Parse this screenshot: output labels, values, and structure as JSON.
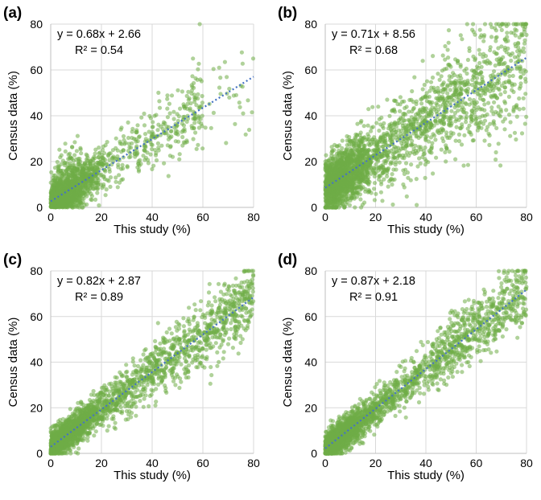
{
  "chart_data": [
    {
      "type": "scatter",
      "panel_label": "(a)",
      "xlabel": "This study (%)",
      "ylabel": "Census data (%)",
      "xlim": [
        0,
        80
      ],
      "ylim": [
        0,
        80
      ],
      "xticks": [
        0,
        20,
        40,
        60,
        80
      ],
      "yticks": [
        0,
        20,
        40,
        60,
        80
      ],
      "grid": true,
      "point_color": "#70ad47",
      "trendline_color": "#4472c4",
      "trendline": {
        "slope": 0.68,
        "intercept": 2.66,
        "equation": "y = 0.68x + 2.66",
        "r2": "R² = 0.54"
      },
      "sample_points": {
        "count": 1800,
        "spread": 6.5,
        "x_concentration": "low",
        "seed": 11
      }
    },
    {
      "type": "scatter",
      "panel_label": "(b)",
      "xlabel": "This study (%)",
      "ylabel": "Census data (%)",
      "xlim": [
        0,
        80
      ],
      "ylim": [
        0,
        80
      ],
      "xticks": [
        0,
        20,
        40,
        60,
        80
      ],
      "yticks": [
        0,
        20,
        40,
        60,
        80
      ],
      "grid": true,
      "point_color": "#70ad47",
      "trendline_color": "#4472c4",
      "trendline": {
        "slope": 0.71,
        "intercept": 8.56,
        "equation": "y = 0.71x + 8.56",
        "r2": "R² = 0.68"
      },
      "sample_points": {
        "count": 2600,
        "spread": 9.0,
        "x_concentration": "wide",
        "seed": 23
      }
    },
    {
      "type": "scatter",
      "panel_label": "(c)",
      "xlabel": "This study (%)",
      "ylabel": "Census data (%)",
      "xlim": [
        0,
        80
      ],
      "ylim": [
        0,
        80
      ],
      "xticks": [
        0,
        20,
        40,
        60,
        80
      ],
      "yticks": [
        0,
        20,
        40,
        60,
        80
      ],
      "grid": true,
      "point_color": "#70ad47",
      "trendline_color": "#4472c4",
      "trendline": {
        "slope": 0.82,
        "intercept": 2.87,
        "equation": "y = 0.82x + 2.87",
        "r2": "R² = 0.89"
      },
      "sample_points": {
        "count": 2400,
        "spread": 5.0,
        "x_concentration": "wide",
        "seed": 37
      }
    },
    {
      "type": "scatter",
      "panel_label": "(d)",
      "xlabel": "This study (%)",
      "ylabel": "Census data (%)",
      "xlim": [
        0,
        80
      ],
      "ylim": [
        0,
        80
      ],
      "xticks": [
        0,
        20,
        40,
        60,
        80
      ],
      "yticks": [
        0,
        20,
        40,
        60,
        80
      ],
      "grid": true,
      "point_color": "#70ad47",
      "trendline_color": "#4472c4",
      "trendline": {
        "slope": 0.87,
        "intercept": 2.18,
        "equation": "y = 0.87x + 2.18",
        "r2": "R² = 0.91"
      },
      "sample_points": {
        "count": 2400,
        "spread": 5.0,
        "x_concentration": "wide",
        "seed": 53
      }
    }
  ]
}
